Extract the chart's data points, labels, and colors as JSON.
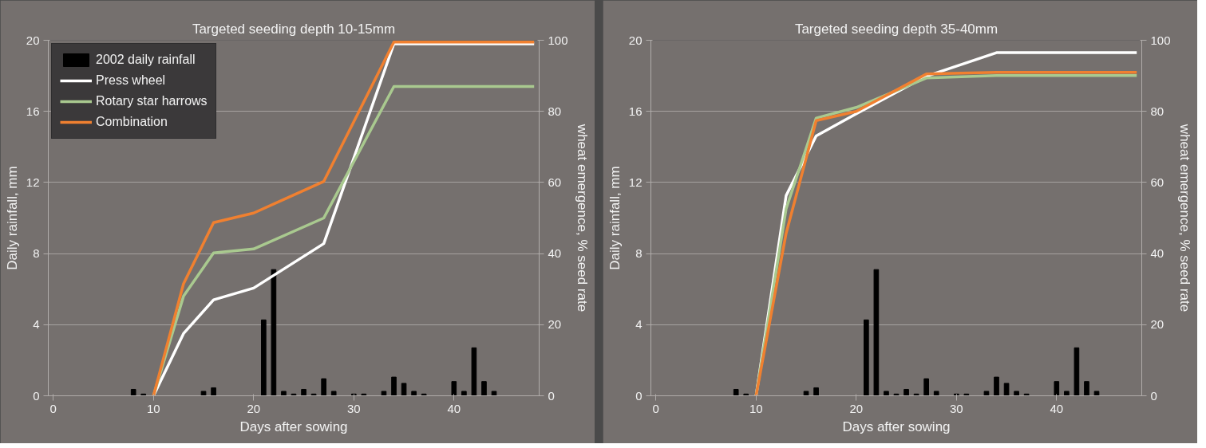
{
  "chart_data": [
    {
      "type": "bar",
      "title": "Targeted seeding depth 10-15mm",
      "xlabel": "Days after sowing",
      "ylabel": "Daily rainfall, mm",
      "y2label": "wheat emergence, % seed rate",
      "xlim": [
        -0.5,
        48.5
      ],
      "xticks": [
        0,
        10,
        20,
        30,
        40
      ],
      "ylim": [
        0,
        20
      ],
      "yticks": [
        0,
        4,
        8,
        12,
        16,
        20
      ],
      "y2lim": [
        0,
        100
      ],
      "y2ticks": [
        0,
        20,
        40,
        60,
        80,
        100
      ],
      "grid": "y",
      "legend": "top left",
      "series": [
        {
          "name": "2002 daily rainfall",
          "color": "#000000",
          "x": [
            8,
            9,
            15,
            16,
            21,
            22,
            23,
            24,
            25,
            26,
            27,
            28,
            30,
            31,
            33,
            34,
            35,
            36,
            37,
            40,
            41,
            42,
            43,
            44
          ],
          "values": [
            0.36,
            0.1,
            0.25,
            0.45,
            4.27,
            7.1,
            0.25,
            0.1,
            0.36,
            0.1,
            0.96,
            0.25,
            0.1,
            0.1,
            0.25,
            1.05,
            0.7,
            0.25,
            0.1,
            0.8,
            0.25,
            2.7,
            0.8,
            0.25
          ]
        },
        {
          "name": "Press wheel",
          "type": "line",
          "axis": "y2",
          "color": "#ffffff",
          "x": [
            10,
            13,
            16,
            20,
            27,
            34,
            48
          ],
          "values": [
            0,
            17.5,
            27,
            30.3,
            42.8,
            99,
            99
          ]
        },
        {
          "name": "Rotary star harrows",
          "type": "line",
          "axis": "y2",
          "color": "#a9c98f",
          "x": [
            10,
            13,
            16,
            20,
            27,
            34,
            48
          ],
          "values": [
            0,
            28,
            40.2,
            41.3,
            50,
            87,
            87
          ]
        },
        {
          "name": "Combination",
          "type": "line",
          "axis": "y2",
          "color": "#f08030",
          "x": [
            10,
            13,
            16,
            20,
            27,
            34,
            48
          ],
          "values": [
            0,
            31.5,
            48.7,
            51.4,
            60.3,
            99.5,
            99.5
          ]
        }
      ]
    },
    {
      "type": "bar",
      "title": "Targeted seeding depth 35-40mm",
      "xlabel": "Days after sowing",
      "ylabel": "Daily rainfall, mm",
      "y2label": "wheat emergence, % seed rate",
      "xlim": [
        -0.5,
        48.5
      ],
      "xticks": [
        0,
        10,
        20,
        30,
        40
      ],
      "ylim": [
        0,
        20
      ],
      "yticks": [
        0,
        4,
        8,
        12,
        16,
        20
      ],
      "y2lim": [
        0,
        100
      ],
      "y2ticks": [
        0,
        20,
        40,
        60,
        80,
        100
      ],
      "grid": "y",
      "series": [
        {
          "color": "#000000",
          "x": [
            8,
            9,
            15,
            16,
            21,
            22,
            23,
            24,
            25,
            26,
            27,
            28,
            30,
            31,
            33,
            34,
            35,
            36,
            37,
            40,
            41,
            42,
            43,
            44
          ],
          "values": [
            0.36,
            0.1,
            0.25,
            0.45,
            4.27,
            7.1,
            0.25,
            0.1,
            0.36,
            0.1,
            0.96,
            0.25,
            0.1,
            0.1,
            0.25,
            1.05,
            0.7,
            0.25,
            0.1,
            0.8,
            0.25,
            2.7,
            0.8,
            0.25
          ]
        },
        {
          "type": "line",
          "axis": "y2",
          "color": "#ffffff",
          "x": [
            10,
            13,
            16,
            20,
            27,
            34,
            48
          ],
          "values": [
            0,
            56.3,
            73.1,
            79.3,
            89.9,
            96.5,
            96.5
          ]
        },
        {
          "type": "line",
          "axis": "y2",
          "color": "#a9c98f",
          "x": [
            10,
            13,
            16,
            20,
            27,
            34,
            48
          ],
          "values": [
            0,
            52.6,
            78.1,
            81.1,
            89.4,
            90.1,
            90.1
          ]
        },
        {
          "type": "line",
          "axis": "y2",
          "color": "#f08030",
          "x": [
            10,
            13,
            16,
            20,
            27,
            34,
            48
          ],
          "values": [
            0,
            45.7,
            77.4,
            80,
            90.5,
            91,
            91
          ]
        }
      ]
    }
  ]
}
